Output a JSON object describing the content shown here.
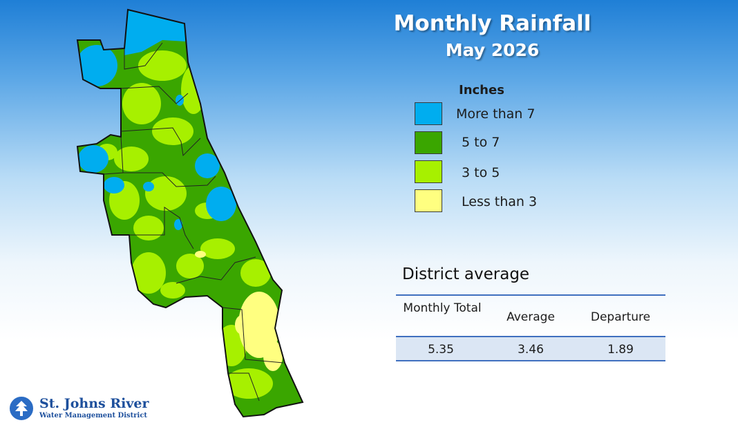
{
  "header": {
    "title": "Monthly Rainfall",
    "subtitle": "May 2026"
  },
  "legend": {
    "heading": "Inches",
    "items": [
      {
        "label": "More than 7",
        "color": "#00adef"
      },
      {
        "label": "5 to 7",
        "color": "#3aa600"
      },
      {
        "label": "3 to 5",
        "color": "#a7f000"
      },
      {
        "label": "Less than 3",
        "color": "#ffff80"
      }
    ]
  },
  "district_average": {
    "heading": "District average",
    "columns": [
      "Monthly Total",
      "Average",
      "Departure"
    ],
    "values": [
      "5.35",
      "3.46",
      "1.89"
    ]
  },
  "logo": {
    "name": "St. Johns River",
    "subtitle": "Water Management District"
  }
}
